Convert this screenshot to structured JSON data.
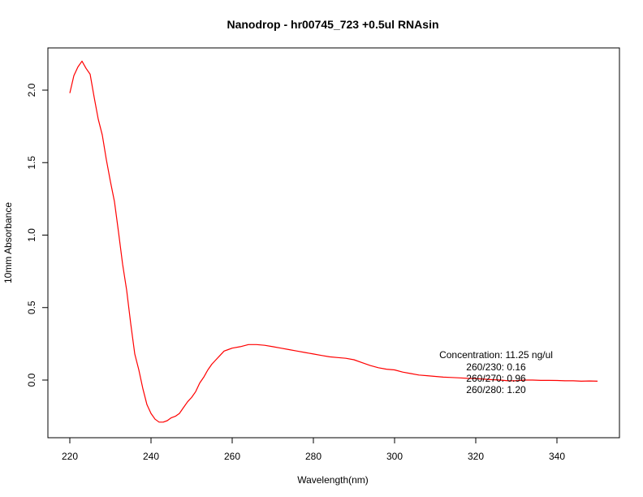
{
  "chart_data": {
    "type": "line",
    "title": "Nanodrop - hr00745_723 +0.5ul RNAsin",
    "xlabel": "Wavelength(nm)",
    "ylabel": "10mm Absorbance",
    "xlim": [
      220,
      350
    ],
    "ylim": [
      -0.4,
      2.3
    ],
    "x_ticks": [
      220,
      240,
      260,
      280,
      300,
      320,
      340
    ],
    "y_ticks": [
      0.0,
      0.5,
      1.0,
      1.5,
      2.0
    ],
    "x_tick_labels": [
      "220",
      "240",
      "260",
      "280",
      "300",
      "320",
      "340"
    ],
    "y_tick_labels": [
      "0.0",
      "0.5",
      "1.0",
      "1.5",
      "2.0"
    ],
    "grid": false,
    "series": [
      {
        "color": "#ff0000",
        "x": [
          220,
          221,
          222,
          223,
          224,
          225,
          226,
          227,
          228,
          229,
          230,
          231,
          232,
          233,
          234,
          235,
          236,
          237,
          238,
          239,
          240,
          241,
          242,
          243,
          244,
          245,
          246,
          247,
          248,
          249,
          250,
          251,
          252,
          253,
          254,
          255,
          256,
          257,
          258,
          259,
          260,
          262,
          264,
          266,
          268,
          270,
          272,
          274,
          276,
          278,
          280,
          282,
          284,
          286,
          288,
          290,
          292,
          294,
          296,
          298,
          300,
          302,
          304,
          306,
          308,
          310,
          312,
          314,
          316,
          318,
          320,
          322,
          324,
          326,
          328,
          330,
          332,
          334,
          336,
          338,
          340,
          342,
          344,
          346,
          348,
          350
        ],
        "y": [
          1.98,
          2.1,
          2.16,
          2.2,
          2.15,
          2.11,
          1.95,
          1.8,
          1.69,
          1.52,
          1.37,
          1.23,
          1.02,
          0.8,
          0.62,
          0.39,
          0.18,
          0.07,
          -0.06,
          -0.17,
          -0.23,
          -0.27,
          -0.29,
          -0.29,
          -0.28,
          -0.26,
          -0.25,
          -0.23,
          -0.19,
          -0.15,
          -0.12,
          -0.08,
          -0.02,
          0.02,
          0.07,
          0.11,
          0.14,
          0.17,
          0.2,
          0.21,
          0.22,
          0.23,
          0.245,
          0.245,
          0.24,
          0.23,
          0.22,
          0.21,
          0.2,
          0.19,
          0.18,
          0.17,
          0.16,
          0.155,
          0.15,
          0.14,
          0.12,
          0.1,
          0.085,
          0.075,
          0.07,
          0.055,
          0.045,
          0.035,
          0.03,
          0.025,
          0.02,
          0.018,
          0.015,
          0.012,
          0.01,
          0.006,
          0.003,
          0.0,
          -0.005,
          -0.005,
          0.0,
          0.0,
          -0.002,
          -0.002,
          -0.003,
          -0.005,
          -0.005,
          -0.008,
          -0.006,
          -0.008
        ]
      }
    ],
    "annotations": [
      {
        "text": "Concentration: 11.25 ng/ul"
      },
      {
        "text": "260/230: 0.16"
      },
      {
        "text": "260/270: 0.96"
      },
      {
        "text": "260/280: 1.20"
      }
    ]
  }
}
